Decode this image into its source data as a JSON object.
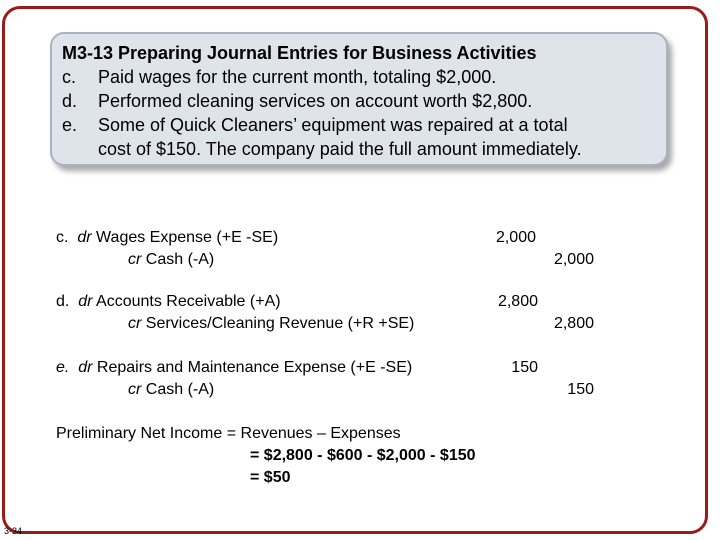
{
  "slide_number": "3-34",
  "problem": {
    "title": "M3-13 Preparing Journal Entries for Business Activities",
    "items": [
      {
        "label": "c.",
        "text": "Paid wages for the current month, totaling $2,000."
      },
      {
        "label": "d.",
        "text": "Performed cleaning services on account worth $2,800."
      },
      {
        "label": "e.",
        "text": "Some of Quick Cleaners’ equipment was repaired at a total"
      }
    ],
    "item_e_continuation": "cost of $150. The company paid the full amount immediately."
  },
  "entries": [
    {
      "label": "c.",
      "debit_prefix": "dr",
      "debit_account": "Wages Expense (+E -SE)",
      "credit_prefix": "cr",
      "credit_account": "Cash (-A)",
      "debit_amount": "2,000",
      "credit_amount": "2,000"
    },
    {
      "label": "d.",
      "debit_prefix": "dr",
      "debit_account": "Accounts Receivable (+A)",
      "credit_prefix": "cr",
      "credit_account": "Services/Cleaning Revenue (+R +SE)",
      "debit_amount": "2,800",
      "credit_amount": "2,800"
    },
    {
      "label": "e.",
      "debit_prefix": "dr",
      "debit_account": "Repairs and Maintenance Expense (+E -SE)",
      "credit_prefix": "cr",
      "credit_account": "Cash (-A)",
      "debit_amount": "150",
      "credit_amount": "150"
    }
  ],
  "net_income": {
    "line1": "Preliminary Net Income = Revenues – Expenses",
    "line2": "= $2,800 - $600 - $2,000 - $150",
    "line3": "= $50"
  },
  "colors": {
    "frame_border": "#9b1b1b",
    "title_box_fill": "#dfe3ea",
    "title_box_border": "#a8b2c4"
  }
}
